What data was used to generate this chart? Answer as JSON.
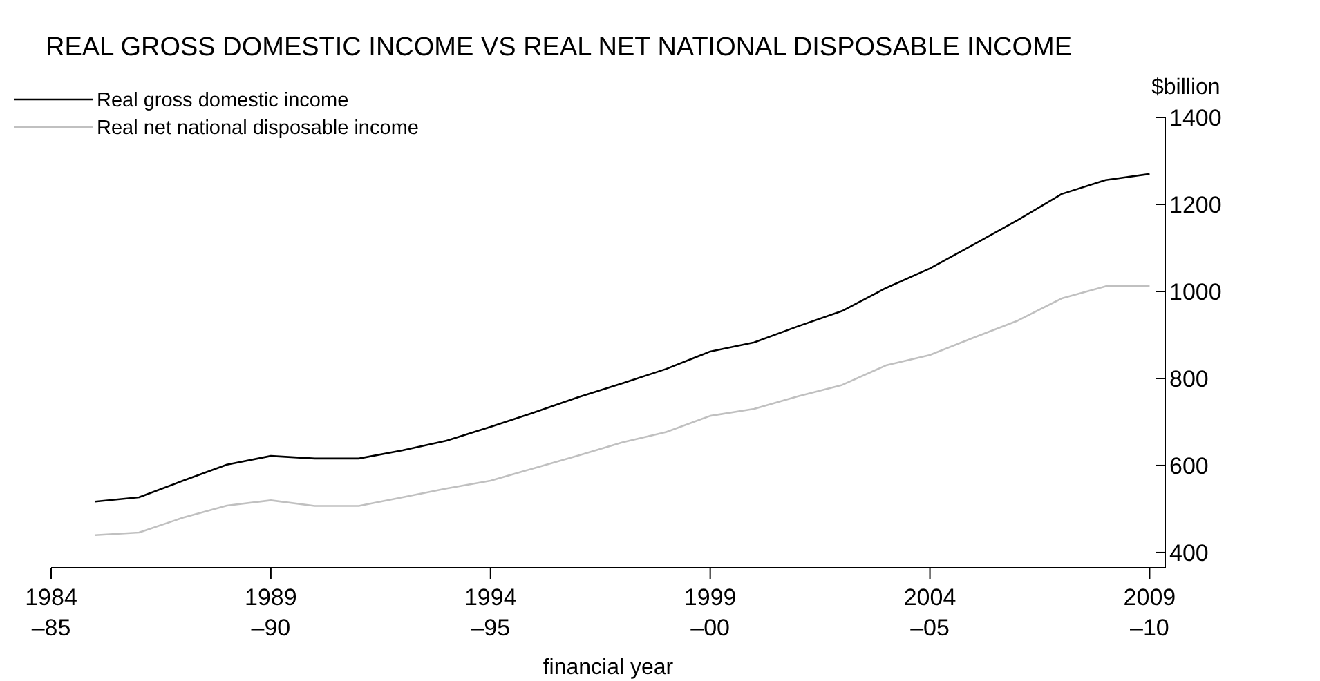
{
  "chart_data": {
    "type": "line",
    "title": "REAL GROSS DOMESTIC INCOME VS REAL NET NATIONAL DISPOSABLE INCOME",
    "xlabel": "financial year",
    "ylabel": "$billion",
    "categories": [
      "1984\n–85",
      null,
      null,
      null,
      null,
      "1989\n–90",
      null,
      null,
      null,
      null,
      "1994\n–95",
      null,
      null,
      null,
      null,
      "1999\n–00",
      null,
      null,
      null,
      null,
      "2004\n–05",
      null,
      null,
      null,
      null,
      "2009\n–10"
    ],
    "series": [
      {
        "name": "Real gross domestic income",
        "color": "#000000",
        "values": [
          null,
          517,
          527,
          565,
          602,
          622,
          616,
          616,
          635,
          657,
          689,
          722,
          757,
          789,
          822,
          862,
          883,
          920,
          955,
          1008,
          1053,
          1108,
          1164,
          1224,
          1256,
          1270
        ]
      },
      {
        "name": "Real net national disposable income",
        "color": "#c0c0c0",
        "values": [
          null,
          440,
          446,
          480,
          508,
          520,
          507,
          507,
          527,
          547,
          565,
          594,
          623,
          653,
          677,
          714,
          730,
          759,
          785,
          830,
          854,
          894,
          933,
          984,
          1012,
          1012
        ]
      }
    ],
    "ylim": [
      365,
      1400
    ],
    "yticks": [
      400,
      600,
      800,
      1000,
      1200,
      1400
    ],
    "legend": "top left",
    "line_style": "solid"
  }
}
